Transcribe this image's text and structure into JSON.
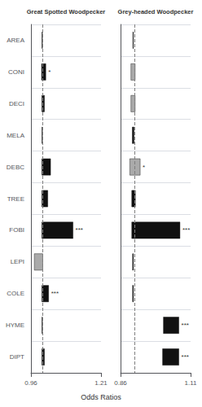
{
  "chart_data": [
    {
      "type": "bar",
      "orientation": "horizontal",
      "title": "Great Spotted Woodpecker",
      "xlabel": "Odds Ratios",
      "categories": [
        "AREA",
        "CONI",
        "DECI",
        "MELA",
        "DEBC",
        "TREE",
        "FOBI",
        "LEPI",
        "COLE",
        "HYME",
        "DIPT"
      ],
      "values": [
        [
          0.9995,
          1.0005
        ],
        [
          0.998,
          1.013
        ],
        [
          0.999,
          1.008
        ],
        [
          0.9995,
          1.001
        ],
        [
          0.999,
          1.03
        ],
        [
          0.999,
          1.02
        ],
        [
          0.999,
          1.11
        ],
        [
          0.972,
          1.002
        ],
        [
          0.999,
          1.023
        ],
        [
          0.9995,
          1.001
        ],
        [
          0.999,
          1.008
        ]
      ],
      "colors": [
        "#111111",
        "#111111",
        "#111111",
        "#111111",
        "#111111",
        "#111111",
        "#111111",
        "#aaaaaa",
        "#111111",
        "#111111",
        "#111111"
      ],
      "annotations": [
        {
          "category": "CONI",
          "text": "*"
        },
        {
          "category": "FOBI",
          "text": "***"
        },
        {
          "category": "COLE",
          "text": "***"
        }
      ],
      "vline": 1.003,
      "xlim": [
        0.96,
        1.21
      ],
      "xticks": [
        0.96,
        1.21
      ],
      "grid": true
    },
    {
      "type": "bar",
      "orientation": "horizontal",
      "title": "Grey-headed Woodpecker",
      "categories": [
        "AREA",
        "CONI",
        "DECI",
        "MELA",
        "DEBC",
        "TREE",
        "FOBI",
        "LEPI",
        "COLE",
        "HYME",
        "DIPT"
      ],
      "values": [
        [
          0.904,
          0.906
        ],
        [
          0.897,
          0.912
        ],
        [
          0.897,
          0.912
        ],
        [
          0.902,
          0.908
        ],
        [
          0.893,
          0.93
        ],
        [
          0.9,
          0.913
        ],
        [
          0.9,
          1.072
        ],
        [
          0.903,
          0.906
        ],
        [
          0.903,
          0.906
        ],
        [
          1.013,
          1.068
        ],
        [
          1.01,
          1.068
        ]
      ],
      "colors": [
        "#111111",
        "#aaaaaa",
        "#aaaaaa",
        "#111111",
        "#aaaaaa",
        "#111111",
        "#111111",
        "#111111",
        "#111111",
        "#111111",
        "#111111"
      ],
      "annotations": [
        {
          "category": "DEBC",
          "text": "*"
        },
        {
          "category": "FOBI",
          "text": "***"
        },
        {
          "category": "HYME",
          "text": "***"
        },
        {
          "category": "DIPT",
          "text": "***"
        }
      ],
      "vline": 0.907,
      "xlim": [
        0.86,
        1.11
      ],
      "xticks": [
        0.86,
        1.11
      ],
      "grid": true,
      "tick_labels": "x"
    }
  ]
}
